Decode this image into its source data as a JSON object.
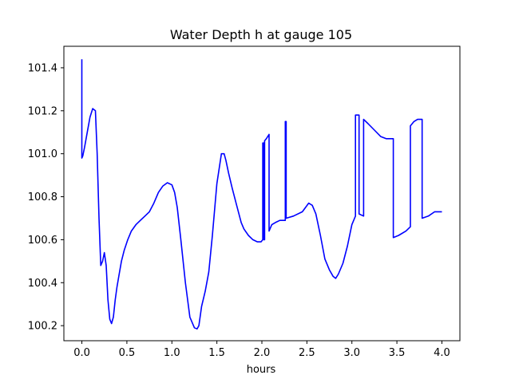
{
  "chart_data": {
    "type": "line",
    "title": "Water Depth h at gauge 105",
    "xlabel": "hours",
    "ylabel": "",
    "xlim": [
      -0.2,
      4.2
    ],
    "ylim": [
      100.13,
      101.5
    ],
    "x_ticks": [
      0.0,
      0.5,
      1.0,
      1.5,
      2.0,
      2.5,
      3.0,
      3.5,
      4.0
    ],
    "x_tick_labels": [
      "0.0",
      "0.5",
      "1.0",
      "1.5",
      "2.0",
      "2.5",
      "3.0",
      "3.5",
      "4.0"
    ],
    "y_ticks": [
      100.2,
      100.4,
      100.6,
      100.8,
      101.0,
      101.2,
      101.4
    ],
    "y_tick_labels": [
      "100.2",
      "100.4",
      "100.6",
      "100.8",
      "101.0",
      "101.2",
      "101.4"
    ],
    "grid": false,
    "series": [
      {
        "color": "#0000ff",
        "x": [
          0.0,
          0.0,
          0.01,
          0.03,
          0.06,
          0.09,
          0.12,
          0.15,
          0.17,
          0.19,
          0.21,
          0.23,
          0.25,
          0.27,
          0.29,
          0.31,
          0.33,
          0.35,
          0.37,
          0.39,
          0.41,
          0.44,
          0.47,
          0.51,
          0.55,
          0.6,
          0.65,
          0.7,
          0.75,
          0.8,
          0.85,
          0.9,
          0.95,
          1.0,
          1.03,
          1.06,
          1.1,
          1.15,
          1.2,
          1.25,
          1.28,
          1.3,
          1.33,
          1.37,
          1.41,
          1.45,
          1.5,
          1.55,
          1.58,
          1.6,
          1.63,
          1.67,
          1.72,
          1.77,
          1.8,
          1.85,
          1.9,
          1.95,
          1.99,
          2.01,
          2.01,
          2.02,
          2.02,
          2.03,
          2.03,
          2.05,
          2.08,
          2.08,
          2.11,
          2.15,
          2.2,
          2.26,
          2.26,
          2.27,
          2.27,
          2.35,
          2.45,
          2.52,
          2.56,
          2.6,
          2.65,
          2.7,
          2.75,
          2.79,
          2.82,
          2.85,
          2.9,
          2.95,
          3.0,
          3.04,
          3.04,
          3.08,
          3.08,
          3.13,
          3.13,
          3.18,
          3.25,
          3.32,
          3.38,
          3.46,
          3.46,
          3.52,
          3.6,
          3.65,
          3.65,
          3.69,
          3.73,
          3.78,
          3.78,
          3.85,
          3.92,
          3.97,
          4.0
        ],
        "values": [
          101.44,
          100.98,
          100.99,
          101.03,
          101.1,
          101.17,
          101.21,
          101.2,
          101.0,
          100.7,
          100.48,
          100.5,
          100.54,
          100.48,
          100.32,
          100.23,
          100.21,
          100.24,
          100.32,
          100.38,
          100.43,
          100.5,
          100.55,
          100.6,
          100.64,
          100.67,
          100.69,
          100.71,
          100.73,
          100.77,
          100.82,
          100.85,
          100.865,
          100.855,
          100.82,
          100.75,
          100.6,
          100.4,
          100.24,
          100.19,
          100.185,
          100.2,
          100.29,
          100.36,
          100.45,
          100.62,
          100.86,
          101.0,
          101.0,
          100.97,
          100.91,
          100.84,
          100.76,
          100.68,
          100.65,
          100.62,
          100.6,
          100.59,
          100.59,
          100.6,
          101.05,
          101.05,
          100.6,
          100.6,
          101.06,
          101.07,
          101.09,
          100.64,
          100.67,
          100.68,
          100.69,
          100.69,
          101.15,
          101.15,
          100.7,
          100.71,
          100.73,
          100.77,
          100.76,
          100.72,
          100.62,
          100.51,
          100.46,
          100.43,
          100.42,
          100.44,
          100.49,
          100.57,
          100.67,
          100.71,
          101.18,
          101.18,
          100.72,
          100.71,
          101.16,
          101.14,
          101.11,
          101.08,
          101.07,
          101.07,
          100.61,
          100.62,
          100.64,
          100.66,
          101.13,
          101.15,
          101.16,
          101.16,
          100.7,
          100.71,
          100.73,
          100.73,
          100.73
        ]
      }
    ]
  }
}
